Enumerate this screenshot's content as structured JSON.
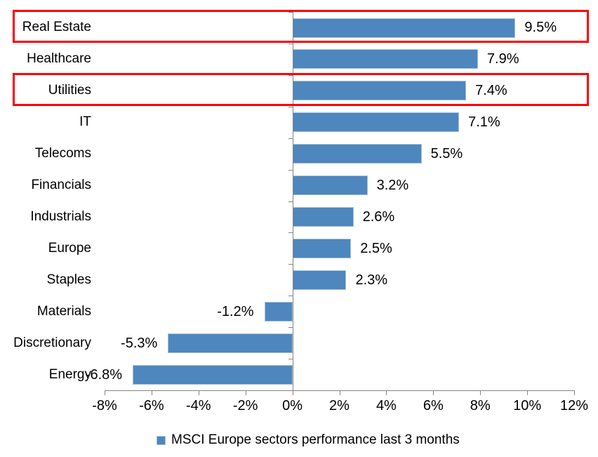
{
  "chart_data": {
    "type": "bar",
    "orientation": "horizontal",
    "categories": [
      "Real Estate",
      "Healthcare",
      "Utilities",
      "IT",
      "Telecoms",
      "Financials",
      "Industrials",
      "Europe",
      "Staples",
      "Materials",
      "Discretionary",
      "Energy"
    ],
    "values": [
      9.5,
      7.9,
      7.4,
      7.1,
      5.5,
      3.2,
      2.6,
      2.5,
      2.3,
      -1.2,
      -5.3,
      -6.8
    ],
    "value_labels": [
      "9.5%",
      "7.9%",
      "7.4%",
      "7.1%",
      "5.5%",
      "3.2%",
      "2.6%",
      "2.5%",
      "2.3%",
      "-1.2%",
      "-5.3%",
      "-6.8%"
    ],
    "x_tick_labels": [
      "-8%",
      "-6%",
      "-4%",
      "-2%",
      "0%",
      "2%",
      "4%",
      "6%",
      "8%",
      "10%",
      "12%"
    ],
    "x_tick_values": [
      -8,
      -6,
      -4,
      -2,
      0,
      2,
      4,
      6,
      8,
      10,
      12
    ],
    "x_range": [
      -8,
      12
    ],
    "grid": false,
    "bar_color": "#4e87bd",
    "bar_edge_color": "#a7c1dd",
    "axis_color": "#848484",
    "text_color": "#000000",
    "legend": {
      "label": "MSCI Europe sectors performance last 3 months",
      "marker_color": "#4e87bd",
      "position": "bottom-center"
    },
    "highlight": {
      "rows": [
        "Real Estate",
        "Utilities"
      ],
      "color": "#ff0000"
    }
  }
}
